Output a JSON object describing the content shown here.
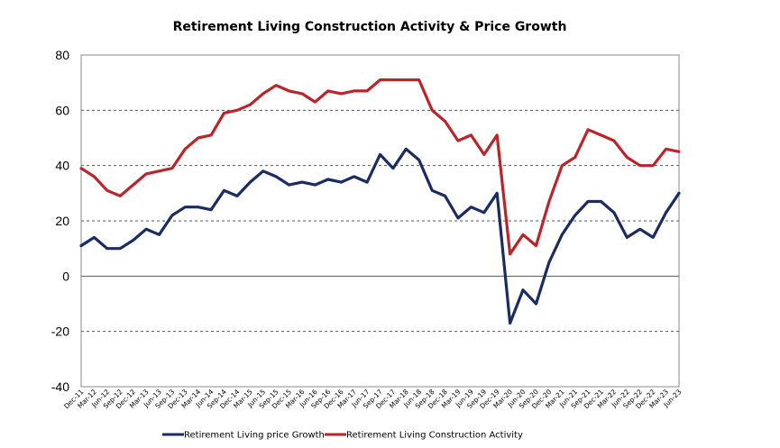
{
  "chart_data": {
    "type": "line",
    "title": "Retirement Living Construction Activity & Price Growth",
    "xlabel": "",
    "ylabel": "",
    "ylim": [
      -40,
      80
    ],
    "yticks": [
      80,
      60,
      40,
      20,
      0,
      -20,
      -40
    ],
    "grid": "horizontal dashed",
    "legend_position": "bottom",
    "categories": [
      "Dec-11",
      "Mar-12",
      "Jun-12",
      "Sep-12",
      "Dec-12",
      "Mar-13",
      "Jun-13",
      "Sep-13",
      "Dec-13",
      "Mar-14",
      "Jun-14",
      "Sep-14",
      "Dec-14",
      "Mar-15",
      "Jun-15",
      "Sep-15",
      "Dec-15",
      "Mar-16",
      "Jun-16",
      "Sep-16",
      "Dec-16",
      "Mar-17",
      "Jun-17",
      "Sep-17",
      "Dec-17",
      "Mar-18",
      "Jun-18",
      "Sep-18",
      "Dec-18",
      "Mar-19",
      "Jun-19",
      "Sep-19",
      "Dec-19",
      "Mar-20",
      "Jun-20",
      "Sep-20",
      "Dec-20",
      "Mar-21",
      "Jun-21",
      "Sep-21",
      "Dec-21",
      "Mar-22",
      "Jun-22",
      "Sep-22",
      "Dec-22",
      "Mar-23",
      "Jun-23"
    ],
    "series": [
      {
        "name": "Retirement Living price Growth",
        "color": "#1b2c63",
        "values": [
          11,
          14,
          10,
          10,
          13,
          17,
          15,
          22,
          25,
          25,
          24,
          31,
          29,
          34,
          38,
          36,
          33,
          34,
          33,
          35,
          34,
          36,
          34,
          44,
          39,
          46,
          42,
          31,
          29,
          21,
          25,
          23,
          30,
          -17,
          -5,
          -10,
          5,
          15,
          22,
          27,
          27,
          23,
          14,
          17,
          14,
          23,
          30
        ]
      },
      {
        "name": "Retirement Living Construction Activity",
        "color": "#b9252b",
        "values": [
          39,
          36,
          31,
          29,
          33,
          37,
          38,
          39,
          46,
          50,
          51,
          59,
          60,
          62,
          66,
          69,
          67,
          66,
          63,
          67,
          66,
          67,
          67,
          71,
          71,
          71,
          71,
          60,
          56,
          49,
          51,
          44,
          51,
          8,
          15,
          11,
          27,
          40,
          43,
          53,
          51,
          49,
          43,
          40,
          40,
          46,
          45
        ]
      }
    ]
  }
}
